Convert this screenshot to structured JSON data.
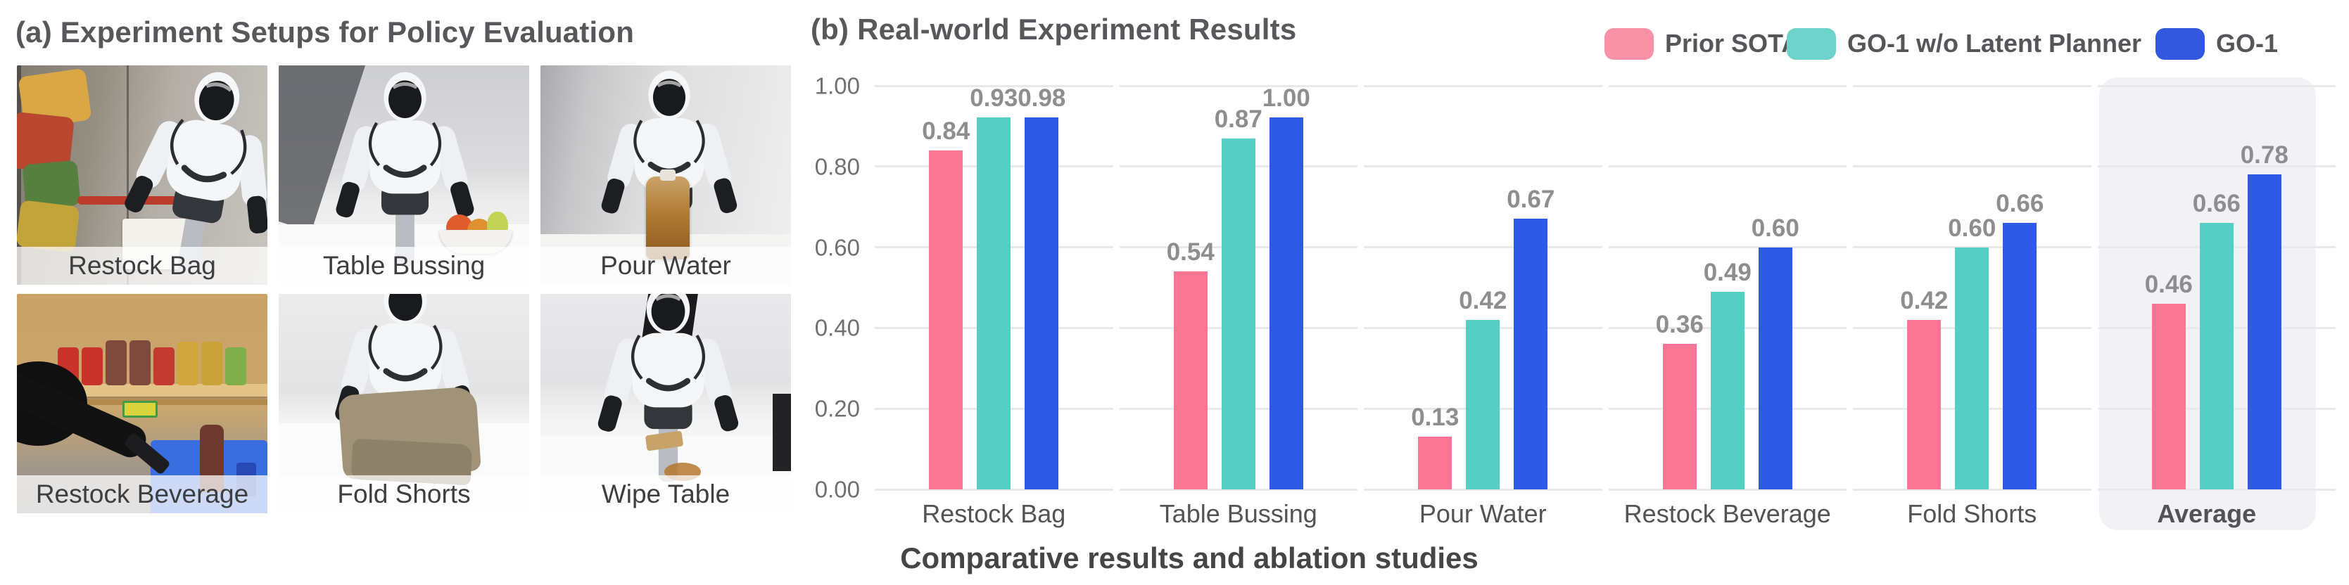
{
  "panel_a": {
    "title": "(a) Experiment Setups for Policy Evaluation",
    "tiles": [
      {
        "label": "Restock Bag"
      },
      {
        "label": "Table Bussing"
      },
      {
        "label": "Pour Water"
      },
      {
        "label": "Restock Beverage"
      },
      {
        "label": "Fold Shorts"
      },
      {
        "label": "Wipe Table"
      }
    ]
  },
  "panel_b": {
    "title": "(b) Real-world Experiment Results",
    "caption": "Comparative results and ablation studies"
  },
  "legend": [
    {
      "label": "Prior SOTA",
      "color": "#F992A7"
    },
    {
      "label": "GO-1 w/o Latent Planner",
      "color": "#6ED4CB"
    },
    {
      "label": "GO-1",
      "color": "#3158DE"
    }
  ],
  "chart_data": {
    "type": "bar",
    "title": "(b) Real-world Experiment Results",
    "caption": "Comparative results and ablation studies",
    "categories": [
      "Restock Bag",
      "Table Bussing",
      "Pour Water",
      "Restock Beverage",
      "Fold Shorts",
      "Average"
    ],
    "series": [
      {
        "name": "Prior SOTA",
        "color": "#FA7694",
        "values": [
          0.84,
          0.54,
          0.13,
          0.36,
          0.42,
          0.46
        ]
      },
      {
        "name": "GO-1 w/o Latent Planner",
        "color": "#55CEC5",
        "values": [
          0.93,
          0.87,
          0.42,
          0.49,
          0.6,
          0.66
        ]
      },
      {
        "name": "GO-1",
        "color": "#2F5AE6",
        "values": [
          0.98,
          1.0,
          0.67,
          0.6,
          0.66,
          0.78
        ]
      }
    ],
    "ylim": [
      0,
      1.0
    ],
    "yticks": [
      "0.00",
      "0.20",
      "0.40",
      "0.60",
      "0.80",
      "1.00"
    ],
    "grid": true,
    "value_labels": true,
    "legend_position": "top-right",
    "highlighted_category": "Average",
    "grid_color": "#E9E9EB",
    "highlight_color": "#F2F2F4"
  }
}
